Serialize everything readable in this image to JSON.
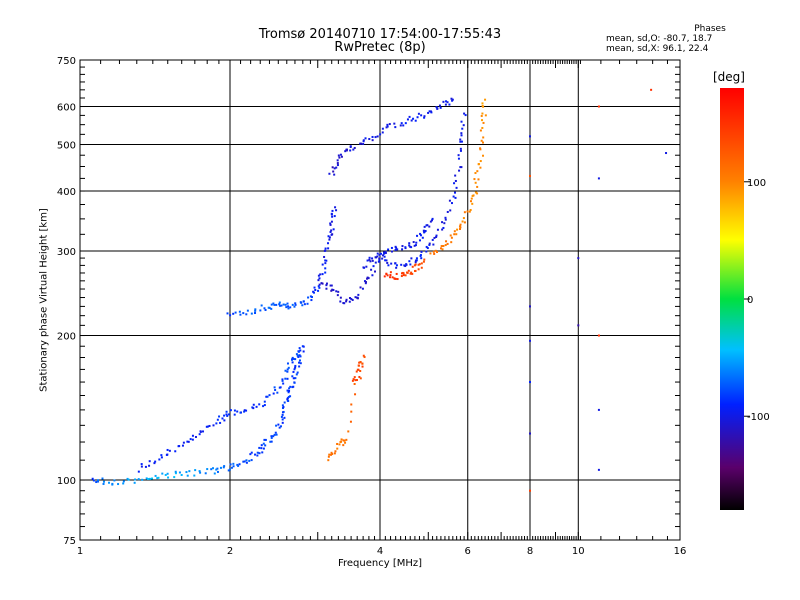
{
  "title": {
    "line1": "Tromsø 20140710 17:54:00-17:55:43",
    "line2": "RwPretec (8p)"
  },
  "phases": {
    "header": "Phases",
    "line_o": "mean, sd,O: -80.7, 18.7",
    "line_x": "mean, sd,X:  96.1, 22.4"
  },
  "chart_data": {
    "type": "scatter",
    "xlabel": "Frequency [MHz]",
    "ylabel": "Stationary phase Virtual Height [km]",
    "xscale": "log",
    "yscale": "log",
    "xlim": [
      1,
      16
    ],
    "ylim": [
      75,
      750
    ],
    "xticks": [
      1,
      2,
      4,
      6,
      8,
      10,
      16
    ],
    "yticks": [
      75,
      100,
      200,
      300,
      400,
      500,
      600,
      750
    ],
    "grid": true,
    "colorbar": {
      "label": "[deg]",
      "range": [
        -180,
        180
      ],
      "ticks": [
        100,
        0,
        -100
      ],
      "colormap": "rainbow (black-purple-blue-cyan-green-yellow-red)"
    },
    "series": [
      {
        "points": [
          [
            1.05,
            100,
            -80
          ],
          [
            1.15,
            99,
            -60
          ],
          [
            1.3,
            100,
            -50
          ],
          [
            1.45,
            102,
            -45
          ],
          [
            1.6,
            103,
            -50
          ],
          [
            1.8,
            104,
            -60
          ],
          [
            1.95,
            106,
            -70
          ],
          [
            2.1,
            108,
            -75
          ],
          [
            2.25,
            113,
            -80
          ],
          [
            2.35,
            118,
            -80
          ],
          [
            2.45,
            125,
            -80
          ],
          [
            2.55,
            135,
            -85
          ],
          [
            2.6,
            145,
            -85
          ],
          [
            2.65,
            155,
            -85
          ],
          [
            2.7,
            165,
            -85
          ],
          [
            2.75,
            178,
            -85
          ],
          [
            2.8,
            190,
            -85
          ]
        ]
      },
      {
        "points": [
          [
            1.3,
            105,
            -90
          ],
          [
            1.45,
            112,
            -95
          ],
          [
            1.6,
            118,
            -95
          ],
          [
            1.75,
            125,
            -95
          ],
          [
            1.9,
            133,
            -90
          ],
          [
            2.0,
            138,
            -90
          ],
          [
            2.2,
            140,
            -90
          ],
          [
            2.4,
            148,
            -85
          ],
          [
            2.55,
            160,
            -80
          ],
          [
            2.65,
            175,
            -80
          ],
          [
            2.75,
            185,
            -80
          ]
        ]
      },
      {
        "points": [
          [
            2.0,
            220,
            -80
          ],
          [
            2.2,
            225,
            -75
          ],
          [
            2.4,
            230,
            -70
          ],
          [
            2.55,
            232,
            -70
          ],
          [
            2.7,
            230,
            -75
          ],
          [
            2.85,
            235,
            -80
          ],
          [
            3.0,
            250,
            -90
          ],
          [
            3.1,
            280,
            -95
          ],
          [
            3.15,
            310,
            -100
          ],
          [
            3.2,
            340,
            -100
          ],
          [
            3.25,
            370,
            -100
          ]
        ]
      },
      {
        "points": [
          [
            3.2,
            430,
            -110
          ],
          [
            3.3,
            470,
            -110
          ],
          [
            3.5,
            490,
            -105
          ],
          [
            3.75,
            510,
            -100
          ],
          [
            4.1,
            540,
            -100
          ],
          [
            4.5,
            560,
            -95
          ],
          [
            4.9,
            575,
            -95
          ],
          [
            5.3,
            600,
            -100
          ],
          [
            5.6,
            620,
            -100
          ]
        ]
      },
      {
        "points": [
          [
            3.0,
            260,
            -110
          ],
          [
            3.2,
            250,
            -110
          ],
          [
            3.4,
            235,
            -110
          ],
          [
            3.6,
            240,
            -110
          ],
          [
            3.8,
            265,
            -105
          ],
          [
            4.0,
            290,
            -100
          ],
          [
            4.3,
            280,
            -95
          ],
          [
            4.6,
            285,
            -95
          ],
          [
            4.9,
            295,
            -95
          ],
          [
            5.2,
            320,
            -100
          ],
          [
            5.5,
            360,
            -100
          ],
          [
            5.7,
            420,
            -100
          ],
          [
            5.85,
            500,
            -100
          ],
          [
            5.9,
            580,
            -100
          ]
        ]
      },
      {
        "points": [
          [
            3.7,
            280,
            -100
          ],
          [
            3.9,
            290,
            -100
          ],
          [
            4.1,
            300,
            -100
          ],
          [
            4.4,
            305,
            -100
          ],
          [
            4.7,
            310,
            -100
          ],
          [
            4.9,
            330,
            -100
          ],
          [
            5.1,
            350,
            -95
          ]
        ]
      },
      {
        "points": [
          [
            4.1,
            270,
            150
          ],
          [
            4.3,
            265,
            145
          ],
          [
            4.5,
            268,
            140
          ],
          [
            4.7,
            275,
            135
          ],
          [
            4.9,
            285,
            130
          ]
        ]
      },
      {
        "points": [
          [
            5.1,
            295,
            110
          ],
          [
            5.4,
            310,
            105
          ],
          [
            5.7,
            330,
            100
          ],
          [
            6.0,
            360,
            100
          ],
          [
            6.2,
            400,
            95
          ],
          [
            6.35,
            460,
            95
          ],
          [
            6.45,
            540,
            95
          ],
          [
            6.5,
            620,
            90
          ]
        ]
      },
      {
        "points": [
          [
            3.55,
            160,
            140
          ],
          [
            3.65,
            170,
            135
          ],
          [
            3.7,
            180,
            130
          ],
          [
            3.4,
            122,
            110
          ],
          [
            3.3,
            118,
            105
          ],
          [
            3.15,
            110,
            105
          ]
        ]
      },
      {
        "points": [
          [
            8.0,
            520,
            -100
          ],
          [
            8.0,
            430,
            130
          ],
          [
            8.0,
            230,
            -110
          ],
          [
            8.0,
            195,
            -100
          ],
          [
            8.0,
            160,
            -90
          ],
          [
            8.0,
            125,
            -110
          ],
          [
            8.0,
            95,
            140
          ],
          [
            10.0,
            290,
            -110
          ],
          [
            10.0,
            210,
            -120
          ],
          [
            11.0,
            600,
            150
          ],
          [
            11.0,
            425,
            -100
          ],
          [
            11.0,
            200,
            150
          ],
          [
            11.0,
            140,
            -100
          ],
          [
            11.0,
            105,
            -100
          ],
          [
            14.0,
            650,
            150
          ],
          [
            15.0,
            480,
            -100
          ]
        ]
      }
    ]
  }
}
